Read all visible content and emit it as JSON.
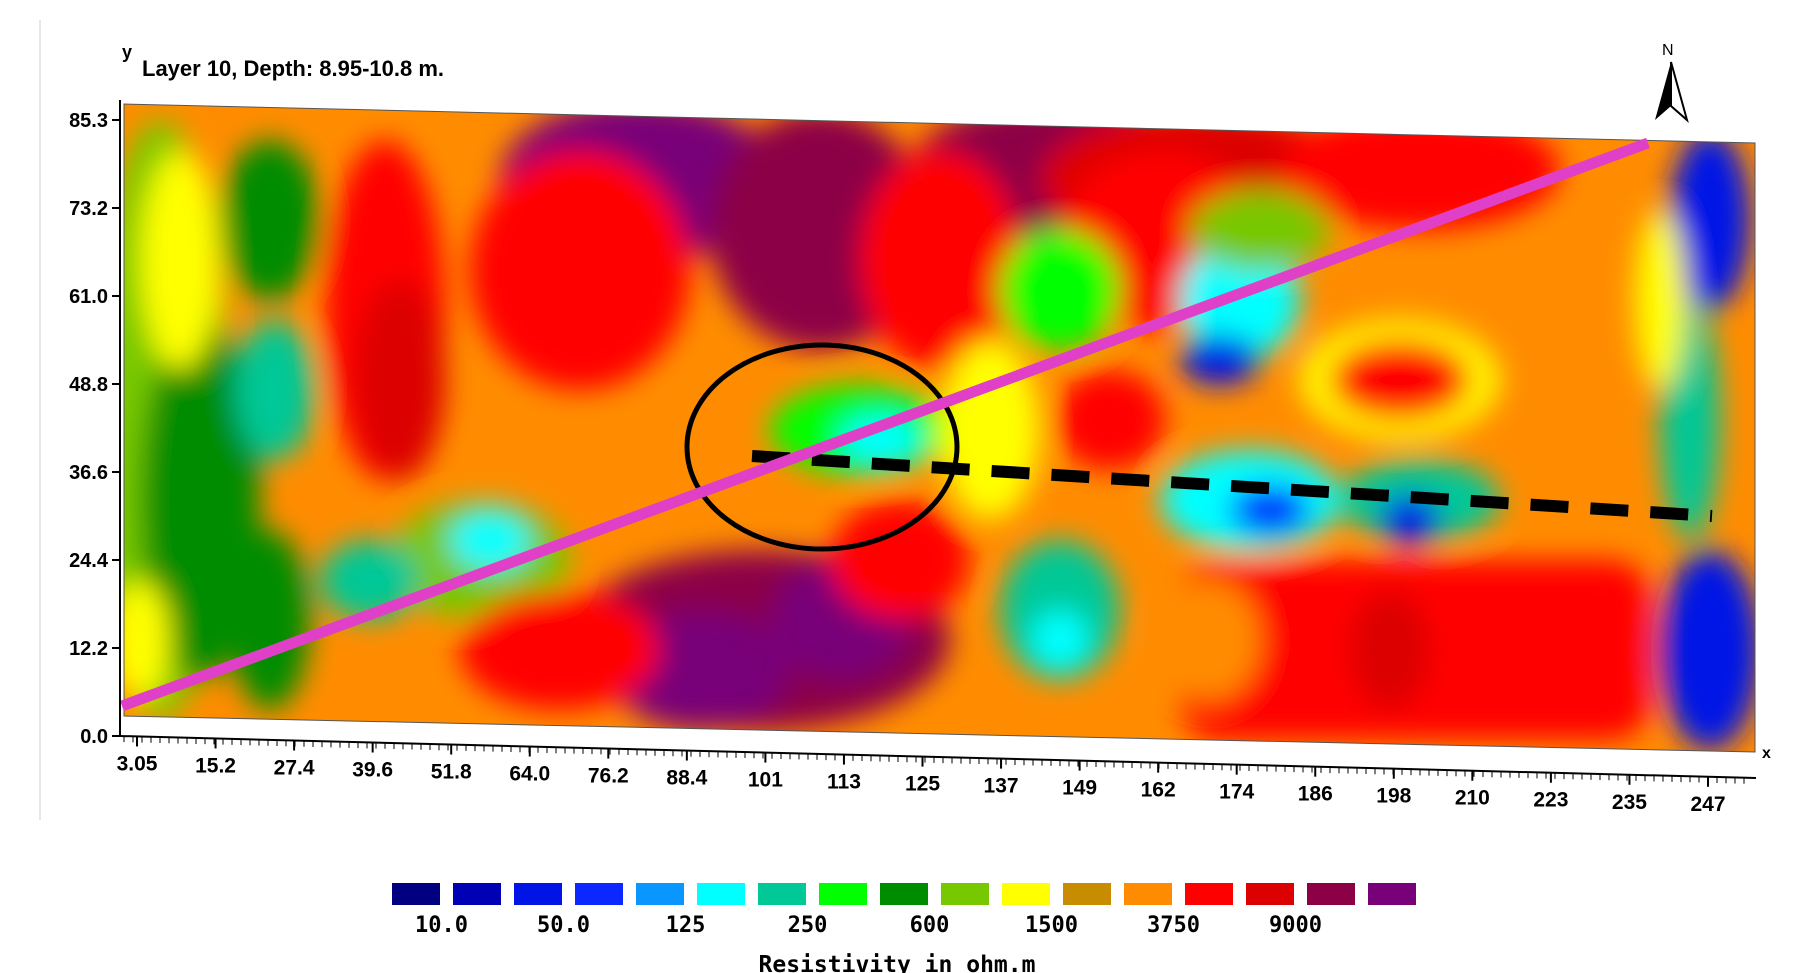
{
  "map": {
    "title": "Layer 10, Depth: 8.95-10.8 m.",
    "x_axis_letter": "x",
    "y_axis_letter": "y",
    "north_label": "N",
    "y_ticks": [
      "0.0",
      "12.2",
      "24.4",
      "36.6",
      "48.8",
      "61.0",
      "73.2",
      "85.3"
    ],
    "x_ticks": [
      "3.05",
      "15.2",
      "27.4",
      "39.6",
      "51.8",
      "64.0",
      "76.2",
      "88.4",
      "101",
      "113",
      "125",
      "137",
      "149",
      "162",
      "174",
      "186",
      "198",
      "210",
      "223",
      "235",
      "247"
    ]
  },
  "legend": {
    "title": "Resistivity in ohm.m",
    "labels": [
      "10.0",
      "50.0",
      "125",
      "250",
      "600",
      "1500",
      "3750",
      "9000"
    ],
    "colors": [
      "#000080",
      "#0000b4",
      "#0014e6",
      "#0a28ff",
      "#0a96ff",
      "#00ffff",
      "#00c896",
      "#00ff00",
      "#008c00",
      "#78c800",
      "#ffff00",
      "#c88c00",
      "#ff8c00",
      "#ff0000",
      "#dc0000",
      "#8c0046",
      "#780078"
    ]
  },
  "colors": {
    "profile_line": "#e040c8",
    "fault_line": "#000000",
    "anomaly_circle": "#000000"
  }
}
